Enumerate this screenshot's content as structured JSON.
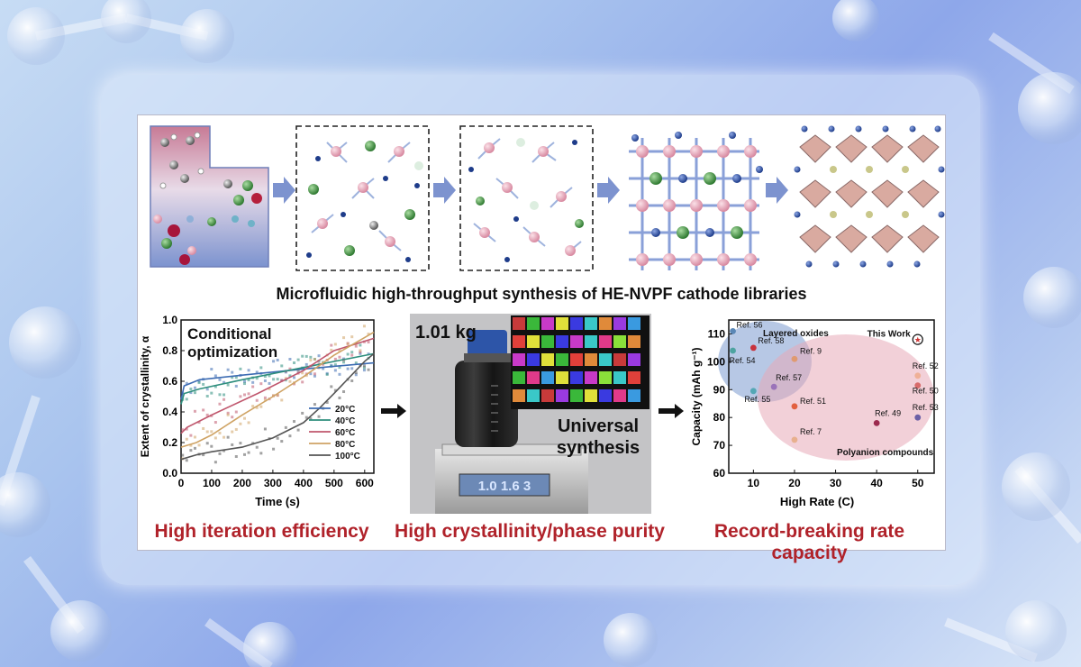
{
  "pipeline": {
    "title": "Microfluidic high-throughput synthesis of HE-NVPF cathode libraries"
  },
  "kinetics_chart": {
    "heading_line1": "Conditional",
    "heading_line2": "optimization",
    "caption": "High iteration efficiency"
  },
  "photo_panel": {
    "mass_label": "1.01 kg",
    "overlay_line1": "Universal",
    "overlay_line2": "synthesis",
    "caption": "High crystallinity/phase purity"
  },
  "rate_chart": {
    "caption": "Record-breaking rate capacity"
  },
  "colors": {
    "caption_red": "#b0222a",
    "arrow_blue": "#7d93cf"
  },
  "chart_data": [
    {
      "type": "line",
      "title": "Conditional optimization",
      "xlabel": "Time (s)",
      "ylabel": "Extent of crystallinity, α",
      "xlim": [
        0,
        630
      ],
      "ylim": [
        0,
        1.0
      ],
      "xticks": [
        "0",
        "100",
        "200",
        "300",
        "400",
        "500",
        "600"
      ],
      "yticks": [
        "0.0",
        "0.2",
        "0.4",
        "0.6",
        "0.8",
        "1.0"
      ],
      "series": [
        {
          "name": "20°C",
          "color": "#3d6cb3",
          "x": [
            0,
            10,
            60,
            200,
            400,
            630
          ],
          "y": [
            0.48,
            0.57,
            0.61,
            0.64,
            0.68,
            0.72
          ]
        },
        {
          "name": "40°C",
          "color": "#2e8e7d",
          "x": [
            0,
            10,
            60,
            200,
            400,
            630
          ],
          "y": [
            0.45,
            0.52,
            0.55,
            0.61,
            0.69,
            0.78
          ]
        },
        {
          "name": "60°C",
          "color": "#c0576d",
          "x": [
            0,
            20,
            100,
            250,
            400,
            500,
            630
          ],
          "y": [
            0.26,
            0.3,
            0.38,
            0.52,
            0.67,
            0.8,
            0.88
          ]
        },
        {
          "name": "80°C",
          "color": "#cfa364",
          "x": [
            0,
            50,
            100,
            200,
            300,
            400,
            500,
            630
          ],
          "y": [
            0.17,
            0.2,
            0.25,
            0.38,
            0.5,
            0.63,
            0.77,
            0.92
          ]
        },
        {
          "name": "100°C",
          "color": "#555555",
          "x": [
            0,
            50,
            100,
            200,
            300,
            400,
            450,
            500,
            600,
            630
          ],
          "y": [
            0.09,
            0.12,
            0.14,
            0.17,
            0.23,
            0.33,
            0.42,
            0.52,
            0.73,
            0.78
          ]
        }
      ]
    },
    {
      "type": "scatter",
      "xlabel": "High Rate (C)",
      "ylabel": "Capacity (mAh g⁻¹)",
      "xlim": [
        4,
        54
      ],
      "ylim": [
        60,
        115
      ],
      "xticks": [
        "10",
        "20",
        "30",
        "40",
        "50"
      ],
      "yticks": [
        "60",
        "70",
        "80",
        "90",
        "100",
        "110"
      ],
      "regions": [
        "Layered oxides",
        "Polyanion compounds"
      ],
      "points": [
        {
          "label": "Ref. 56",
          "x": 5,
          "y": 111,
          "color": "#5a87b6"
        },
        {
          "label": "Ref. 58",
          "x": 10,
          "y": 105,
          "color": "#c8323c"
        },
        {
          "label": "Ref. 54",
          "x": 5,
          "y": 104,
          "color": "#4da3a0"
        },
        {
          "label": "Ref. 55",
          "x": 10,
          "y": 89.5,
          "color": "#54a7b5"
        },
        {
          "label": "Ref. 57",
          "x": 15,
          "y": 91,
          "color": "#9a73b9"
        },
        {
          "label": "Ref. 9",
          "x": 20,
          "y": 101,
          "color": "#e09a70"
        },
        {
          "label": "Ref. 51",
          "x": 20,
          "y": 84,
          "color": "#e26040"
        },
        {
          "label": "Ref. 7",
          "x": 20,
          "y": 72,
          "color": "#e8b08e"
        },
        {
          "label": "Ref. 49",
          "x": 40,
          "y": 78,
          "color": "#9c2a4e"
        },
        {
          "label": "Ref. 52",
          "x": 50,
          "y": 95,
          "color": "#efb097"
        },
        {
          "label": "Ref. 50",
          "x": 50,
          "y": 91.5,
          "color": "#d86b6b"
        },
        {
          "label": "Ref. 53",
          "x": 50,
          "y": 80,
          "color": "#6c5fa6"
        },
        {
          "label": "This Work",
          "x": 50,
          "y": 108,
          "color": "#cc3333"
        }
      ]
    }
  ]
}
